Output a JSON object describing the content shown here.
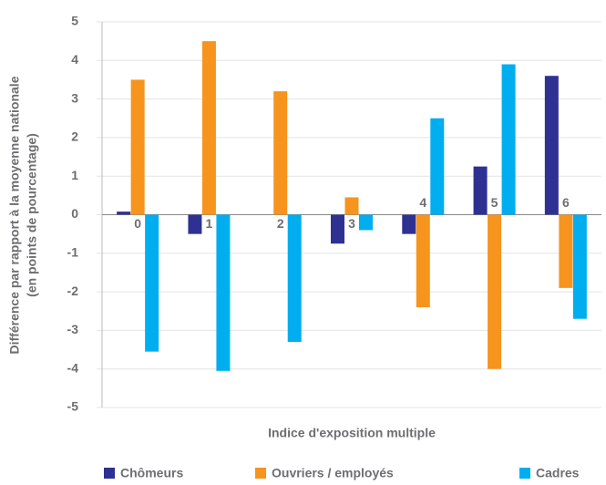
{
  "chart_data": {
    "type": "bar",
    "categories": [
      "0",
      "1",
      "2",
      "3",
      "4",
      "5",
      "6"
    ],
    "series": [
      {
        "name": "Chômeurs",
        "color": "#2e3192",
        "values": [
          0.08,
          -0.5,
          0,
          -0.75,
          -0.5,
          1.25,
          3.6
        ]
      },
      {
        "name": "Ouvriers / employés",
        "color": "#f7941d",
        "values": [
          3.5,
          4.5,
          3.2,
          0.45,
          -2.4,
          -4,
          -1.9
        ]
      },
      {
        "name": "Cadres",
        "color": "#00aeef",
        "values": [
          -3.55,
          -4.05,
          -3.3,
          -0.4,
          2.5,
          3.9,
          -2.7
        ]
      }
    ],
    "ylabel": [
      "Différence par rapport à la moyenne nationale",
      "(en points de pourcentage)"
    ],
    "xlabel": "Indice d'exposition multiple",
    "ylim": [
      -5,
      5
    ],
    "yticks": [
      -5,
      -4,
      -3,
      -2,
      -1,
      0,
      1,
      2,
      3,
      4,
      5
    ],
    "grid": true,
    "legend": "bottom"
  }
}
